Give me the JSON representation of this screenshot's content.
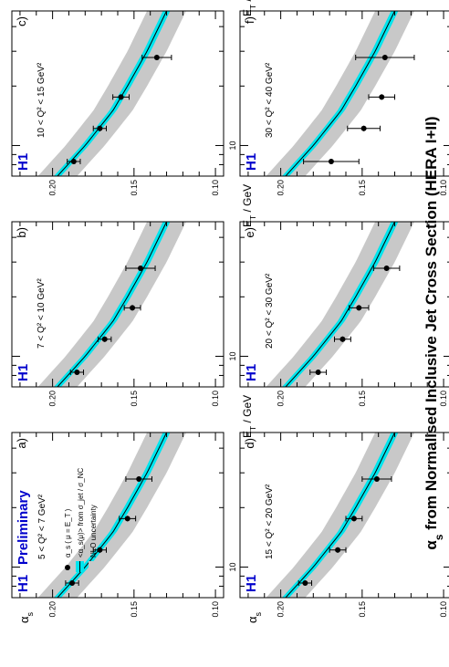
{
  "figure": {
    "title_main": "α",
    "title_sub": "s",
    "title_rest": " from Normalised Inclusive Jet Cross Section (HERA I+II)",
    "ylabel_main": "α",
    "ylabel_sub": "s",
    "xlabel_main": "E",
    "xlabel_sub": "T",
    "xlabel_rest": " / GeV",
    "experiment": "H1",
    "preliminary": "Preliminary",
    "legend": {
      "points_label": "α_s ( μ = E_T )",
      "band_label": "<α_s(μ)> from σ_jet / σ_NC",
      "unc_label": "NLO uncertainty"
    }
  },
  "colors": {
    "band": "#00e5ee",
    "uncertainty": "#c8c8c8",
    "curve": "#000000",
    "points": "#000000",
    "h1_label": "#0000cc"
  },
  "chart_data": [
    {
      "type": "scatter",
      "panel": "a)",
      "q2_range": "5 < Q² < 7 GeV²",
      "x": [
        8.3,
        12.2,
        17.6,
        27.9
      ],
      "y": [
        0.188,
        0.171,
        0.154,
        0.147
      ],
      "yerr": [
        0.004,
        0.004,
        0.005,
        0.008
      ],
      "xlim": [
        7,
        48
      ],
      "ylim": [
        0.095,
        0.225
      ],
      "xscale": "log",
      "yticks": [
        0.1,
        0.15,
        0.2
      ],
      "xticks": [
        10
      ],
      "band": [
        [
          7,
          0.197
        ],
        [
          10,
          0.18
        ],
        [
          15,
          0.163
        ],
        [
          20,
          0.154
        ],
        [
          30,
          0.142
        ],
        [
          48,
          0.13
        ]
      ]
    },
    {
      "type": "scatter",
      "panel": "b)",
      "q2_range": "7 < Q² < 10 GeV²",
      "x": [
        8.3,
        12.2,
        17.6,
        27.9
      ],
      "y": [
        0.185,
        0.168,
        0.151,
        0.146
      ],
      "yerr": [
        0.004,
        0.004,
        0.005,
        0.009
      ],
      "xlim": [
        7,
        48
      ],
      "ylim": [
        0.095,
        0.225
      ],
      "xscale": "log",
      "yticks": [
        0.1,
        0.15,
        0.2
      ],
      "xticks": [
        10
      ],
      "band": [
        [
          7,
          0.197
        ],
        [
          10,
          0.18
        ],
        [
          15,
          0.163
        ],
        [
          20,
          0.154
        ],
        [
          30,
          0.142
        ],
        [
          48,
          0.13
        ]
      ]
    },
    {
      "type": "scatter",
      "panel": "c)",
      "q2_range": "10 < Q² < 15 GeV²",
      "x": [
        8.3,
        12.2,
        17.6,
        27.9
      ],
      "y": [
        0.187,
        0.171,
        0.158,
        0.136
      ],
      "yerr": [
        0.004,
        0.004,
        0.005,
        0.009
      ],
      "xlim": [
        7,
        48
      ],
      "ylim": [
        0.095,
        0.225
      ],
      "xscale": "log",
      "yticks": [
        0.1,
        0.15,
        0.2
      ],
      "xticks": [
        10
      ],
      "band": [
        [
          7,
          0.197
        ],
        [
          10,
          0.18
        ],
        [
          15,
          0.163
        ],
        [
          20,
          0.154
        ],
        [
          30,
          0.142
        ],
        [
          48,
          0.13
        ]
      ]
    },
    {
      "type": "scatter",
      "panel": "d)",
      "q2_range": "15 < Q² < 20 GeV²",
      "x": [
        8.3,
        12.2,
        17.6,
        27.9
      ],
      "y": [
        0.185,
        0.165,
        0.155,
        0.141
      ],
      "yerr": [
        0.004,
        0.005,
        0.005,
        0.009
      ],
      "xlim": [
        7,
        48
      ],
      "ylim": [
        0.095,
        0.225
      ],
      "xscale": "log",
      "yticks": [
        0.1,
        0.15,
        0.2
      ],
      "xticks": [
        10
      ],
      "band": [
        [
          7,
          0.197
        ],
        [
          10,
          0.18
        ],
        [
          15,
          0.163
        ],
        [
          20,
          0.154
        ],
        [
          30,
          0.142
        ],
        [
          48,
          0.13
        ]
      ]
    },
    {
      "type": "scatter",
      "panel": "e)",
      "q2_range": "20 < Q² < 30 GeV²",
      "x": [
        8.3,
        12.2,
        17.6,
        27.9
      ],
      "y": [
        0.177,
        0.162,
        0.152,
        0.135
      ],
      "yerr": [
        0.005,
        0.005,
        0.006,
        0.008
      ],
      "xlim": [
        7,
        48
      ],
      "ylim": [
        0.095,
        0.225
      ],
      "xscale": "log",
      "yticks": [
        0.1,
        0.15,
        0.2
      ],
      "xticks": [
        10
      ],
      "band": [
        [
          7,
          0.197
        ],
        [
          10,
          0.18
        ],
        [
          15,
          0.163
        ],
        [
          20,
          0.154
        ],
        [
          30,
          0.142
        ],
        [
          48,
          0.13
        ]
      ]
    },
    {
      "type": "scatter",
      "panel": "f)",
      "q2_range": "30 < Q² < 40 GeV²",
      "x": [
        8.3,
        12.2,
        17.6,
        27.9
      ],
      "y": [
        0.169,
        0.149,
        0.138,
        0.136
      ],
      "yerr": [
        0.017,
        0.01,
        0.008,
        0.018
      ],
      "xlim": [
        7,
        48
      ],
      "ylim": [
        0.095,
        0.225
      ],
      "xscale": "log",
      "yticks": [
        0.1,
        0.15,
        0.2
      ],
      "xticks": [
        10
      ],
      "band": [
        [
          7,
          0.197
        ],
        [
          10,
          0.18
        ],
        [
          15,
          0.163
        ],
        [
          20,
          0.154
        ],
        [
          30,
          0.142
        ],
        [
          48,
          0.13
        ]
      ]
    }
  ]
}
